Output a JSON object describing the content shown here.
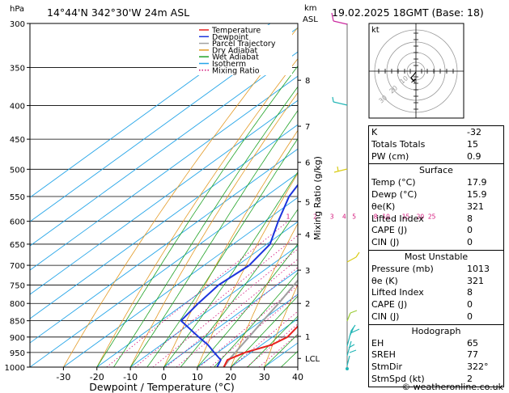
{
  "header": {
    "hpa_label": "hPa",
    "location": "14°44'N  342°30'W  24m  ASL",
    "km_label": "km",
    "asl_label": "ASL",
    "datetime": "19.02.2025  18GMT  (Base: 18)"
  },
  "footer": {
    "credit": "© weatheronline.co.uk"
  },
  "chart_data": {
    "type": "line",
    "title": "",
    "xlabel": "Dewpoint / Temperature (°C)",
    "ylabel": "hPa",
    "right_axis_label": "Mixing Ratio (g/kg)",
    "xlim": [
      -40,
      40
    ],
    "ylim": [
      1000,
      300
    ],
    "x_ticks": [
      "-30",
      "-20",
      "-10",
      "0",
      "10",
      "20",
      "30",
      "40"
    ],
    "p_ticks": [
      "300",
      "350",
      "400",
      "450",
      "500",
      "550",
      "600",
      "650",
      "700",
      "750",
      "800",
      "850",
      "900",
      "950",
      "1000"
    ],
    "km_ticks": [
      {
        "label": "8",
        "p": 366
      },
      {
        "label": "7",
        "p": 430
      },
      {
        "label": "6",
        "p": 488
      },
      {
        "label": "5",
        "p": 560
      },
      {
        "label": "4",
        "p": 628
      },
      {
        "label": "3",
        "p": 712
      },
      {
        "label": "2",
        "p": 800
      },
      {
        "label": "1",
        "p": 898
      },
      {
        "label": "LCL",
        "p": 970
      }
    ],
    "mixing_ratio_labels": [
      "1",
      "2",
      "3",
      "4",
      "5",
      "8",
      "10",
      "15",
      "20",
      "25"
    ],
    "legend": [
      "Temperature",
      "Dewpoint",
      "Parcel Trajectory",
      "Dry Adiabat",
      "Wet Adiabat",
      "Isotherm",
      "Mixing Ratio"
    ],
    "legend_colors": [
      "#e8211e",
      "#1c34dc",
      "#a0a0a0",
      "#e39a25",
      "#21a327",
      "#25a5e8",
      "#d4147a"
    ],
    "series": [
      {
        "name": "Temperature",
        "color": "#e8211e",
        "points": [
          {
            "p": 1000,
            "t": 17.9
          },
          {
            "p": 975,
            "t": 16.0
          },
          {
            "p": 950,
            "t": 18.2
          },
          {
            "p": 925,
            "t": 23.0
          },
          {
            "p": 900,
            "t": 24.5
          },
          {
            "p": 850,
            "t": 22.5
          },
          {
            "p": 800,
            "t": 19.0
          },
          {
            "p": 750,
            "t": 15.0
          },
          {
            "p": 700,
            "t": 10.5
          },
          {
            "p": 650,
            "t": 6.0
          },
          {
            "p": 600,
            "t": 1.0
          },
          {
            "p": 550,
            "t": -4.0
          },
          {
            "p": 500,
            "t": -9.5
          },
          {
            "p": 450,
            "t": -15.5
          },
          {
            "p": 400,
            "t": -22.5
          },
          {
            "p": 350,
            "t": -31.0
          },
          {
            "p": 300,
            "t": -40.0
          }
        ]
      },
      {
        "name": "Dewpoint",
        "color": "#1c34dc",
        "points": [
          {
            "p": 1000,
            "t": 15.9
          },
          {
            "p": 975,
            "t": 14.0
          },
          {
            "p": 950,
            "t": 9.0
          },
          {
            "p": 925,
            "t": 4.0
          },
          {
            "p": 900,
            "t": -2.0
          },
          {
            "p": 850,
            "t": -14.0
          },
          {
            "p": 800,
            "t": -16.0
          },
          {
            "p": 750,
            "t": -17.5
          },
          {
            "p": 700,
            "t": -16.5
          },
          {
            "p": 650,
            "t": -19.0
          },
          {
            "p": 600,
            "t": -26.0
          },
          {
            "p": 550,
            "t": -33.0
          },
          {
            "p": 500,
            "t": -38.0
          },
          {
            "p": 450,
            "t": -40.0
          },
          {
            "p": 400,
            "t": -42.5
          },
          {
            "p": 350,
            "t": -49.0
          },
          {
            "p": 330,
            "t": -40.0
          },
          {
            "p": 300,
            "t": -24.0
          }
        ]
      },
      {
        "name": "Parcel Trajectory",
        "color": "#a0a0a0",
        "points": [
          {
            "p": 1000,
            "t": 17.9
          },
          {
            "p": 970,
            "t": 16.2
          },
          {
            "p": 900,
            "t": 13.0
          },
          {
            "p": 850,
            "t": 10.5
          },
          {
            "p": 800,
            "t": 8.0
          },
          {
            "p": 750,
            "t": 5.0
          },
          {
            "p": 700,
            "t": 1.8
          },
          {
            "p": 650,
            "t": -1.8
          },
          {
            "p": 600,
            "t": -5.8
          },
          {
            "p": 550,
            "t": -10.5
          },
          {
            "p": 500,
            "t": -16.0
          },
          {
            "p": 450,
            "t": -22.5
          },
          {
            "p": 400,
            "t": -30.0
          },
          {
            "p": 350,
            "t": -39.0
          },
          {
            "p": 300,
            "t": -49.0
          }
        ]
      }
    ]
  },
  "hodograph": {
    "label": "kt",
    "ring_labels": [
      "10",
      "20",
      "30"
    ]
  },
  "indices": {
    "rows": [
      {
        "label": "K",
        "value": "-32"
      },
      {
        "label": "Totals Totals",
        "value": "15"
      },
      {
        "label": "PW (cm)",
        "value": "0.9"
      }
    ]
  },
  "surface": {
    "title": "Surface",
    "rows": [
      {
        "label": "Temp (°C)",
        "value": "17.9"
      },
      {
        "label": "Dewp (°C)",
        "value": "15.9"
      },
      {
        "label": "θe(K)",
        "value": "321"
      },
      {
        "label": "Lifted Index",
        "value": "8"
      },
      {
        "label": "CAPE (J)",
        "value": "0"
      },
      {
        "label": "CIN (J)",
        "value": "0"
      }
    ]
  },
  "most_unstable": {
    "title": "Most Unstable",
    "rows": [
      {
        "label": "Pressure (mb)",
        "value": "1013"
      },
      {
        "label": "θe (K)",
        "value": "321"
      },
      {
        "label": "Lifted Index",
        "value": "8"
      },
      {
        "label": "CAPE (J)",
        "value": "0"
      },
      {
        "label": "CIN (J)",
        "value": "0"
      }
    ]
  },
  "hodograph_panel": {
    "title": "Hodograph",
    "rows": [
      {
        "label": "EH",
        "value": "65"
      },
      {
        "label": "SREH",
        "value": "77"
      },
      {
        "label": "StmDir",
        "value": "322°"
      },
      {
        "label": "StmSpd (kt)",
        "value": "2"
      }
    ]
  }
}
